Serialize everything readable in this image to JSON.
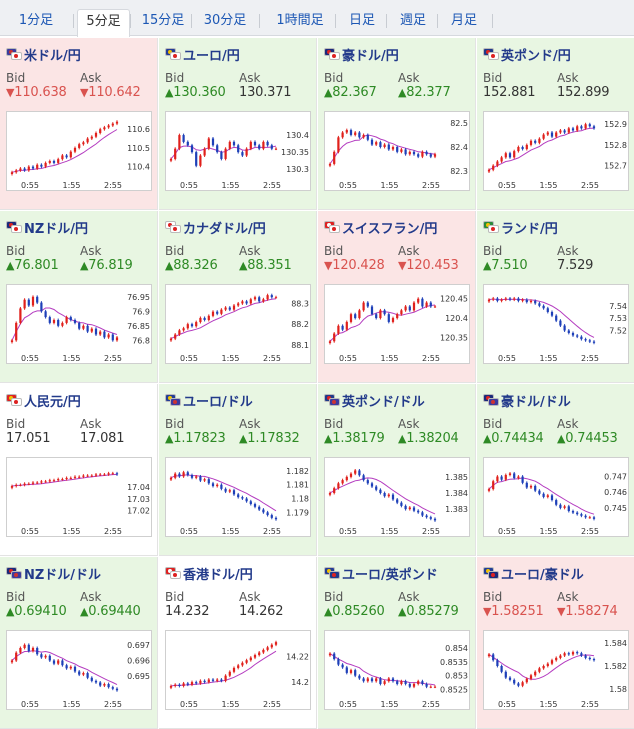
{
  "tabs": [
    {
      "label": "1分足",
      "active": false
    },
    {
      "label": "5分足",
      "active": true
    },
    {
      "label": "15分足",
      "active": false
    },
    {
      "label": "30分足",
      "active": false
    },
    {
      "label": "1時間足",
      "active": false
    },
    {
      "label": "日足",
      "active": false
    },
    {
      "label": "週足",
      "active": false
    },
    {
      "label": "月足",
      "active": false
    }
  ],
  "labels": {
    "bid": "Bid",
    "ask": "Ask"
  },
  "colors": {
    "up": "#2e8a25",
    "down": "#d9534f",
    "candle_up": "#e0201b",
    "candle_down": "#1d3fb8",
    "ma": "#b43cc0",
    "ma_fast": "#3aa7c9"
  },
  "pairs": [
    {
      "name": "米ドル/円",
      "flag": "us-jp-flag-icon",
      "trend": "down",
      "bid": "110.638",
      "ask": "110.642",
      "bid_dir": "down",
      "ask_dir": "down",
      "chart_data": {
        "type": "candlestick",
        "xticks": [
          "0:55",
          "1:55",
          "2:55"
        ],
        "yticks": [
          "110.6",
          "110.5",
          "110.4"
        ],
        "ylim": [
          110.35,
          110.66
        ],
        "close": [
          110.37,
          110.38,
          110.39,
          110.38,
          110.4,
          110.39,
          110.41,
          110.4,
          110.42,
          110.43,
          110.42,
          110.44,
          110.46,
          110.45,
          110.48,
          110.5,
          110.52,
          110.53,
          110.55,
          110.56,
          110.58,
          110.6,
          110.61,
          110.62,
          110.63,
          110.64
        ]
      }
    },
    {
      "name": "ユーロ/円",
      "flag": "eu-jp-flag-icon",
      "trend": "up",
      "bid": "130.360",
      "ask": "130.371",
      "bid_dir": "up",
      "ask_dir": "flat",
      "chart_data": {
        "type": "candlestick",
        "xticks": [
          "0:55",
          "1:55",
          "2:55"
        ],
        "yticks": [
          "130.4",
          "130.35",
          "130.3"
        ],
        "ylim": [
          130.28,
          130.45
        ],
        "close": [
          130.33,
          130.36,
          130.4,
          130.38,
          130.37,
          130.35,
          130.31,
          130.34,
          130.36,
          130.39,
          130.37,
          130.35,
          130.33,
          130.36,
          130.38,
          130.37,
          130.35,
          130.34,
          130.36,
          130.38,
          130.37,
          130.36,
          130.38,
          130.37,
          130.36,
          130.36
        ]
      }
    },
    {
      "name": "豪ドル/円",
      "flag": "au-jp-flag-icon",
      "trend": "up",
      "bid": "82.367",
      "ask": "82.377",
      "bid_dir": "up",
      "ask_dir": "up",
      "chart_data": {
        "type": "candlestick",
        "xticks": [
          "0:55",
          "1:55",
          "2:55"
        ],
        "yticks": [
          "82.5",
          "82.4",
          "82.3"
        ],
        "ylim": [
          82.28,
          82.52
        ],
        "close": [
          82.33,
          82.38,
          82.44,
          82.46,
          82.47,
          82.45,
          82.46,
          82.44,
          82.45,
          82.43,
          82.41,
          82.42,
          82.4,
          82.41,
          82.39,
          82.4,
          82.38,
          82.39,
          82.37,
          82.38,
          82.37,
          82.36,
          82.38,
          82.37,
          82.36,
          82.37
        ]
      }
    },
    {
      "name": "英ポンド/円",
      "flag": "gb-jp-flag-icon",
      "trend": "up",
      "bid": "152.881",
      "ask": "152.899",
      "bid_dir": "flat",
      "ask_dir": "flat",
      "chart_data": {
        "type": "candlestick",
        "xticks": [
          "0:55",
          "1:55",
          "2:55"
        ],
        "yticks": [
          "152.9",
          "152.8",
          "152.7"
        ],
        "ylim": [
          152.65,
          152.93
        ],
        "close": [
          152.68,
          152.7,
          152.72,
          152.74,
          152.76,
          152.74,
          152.77,
          152.79,
          152.78,
          152.8,
          152.82,
          152.81,
          152.83,
          152.85,
          152.86,
          152.84,
          152.86,
          152.87,
          152.86,
          152.88,
          152.87,
          152.89,
          152.88,
          152.9,
          152.89,
          152.88
        ]
      }
    },
    {
      "name": "NZドル/円",
      "flag": "nz-jp-flag-icon",
      "trend": "up",
      "bid": "76.801",
      "ask": "76.819",
      "bid_dir": "up",
      "ask_dir": "up",
      "chart_data": {
        "type": "candlestick",
        "xticks": [
          "0:55",
          "1:55",
          "2:55"
        ],
        "yticks": [
          "76.95",
          "76.9",
          "76.85",
          "76.8"
        ],
        "ylim": [
          76.77,
          76.97
        ],
        "close": [
          76.8,
          76.86,
          76.91,
          76.94,
          76.92,
          76.95,
          76.93,
          76.9,
          76.88,
          76.86,
          76.87,
          76.85,
          76.86,
          76.88,
          76.87,
          76.86,
          76.84,
          76.85,
          76.83,
          76.84,
          76.82,
          76.83,
          76.81,
          76.82,
          76.8,
          76.81
        ]
      }
    },
    {
      "name": "カナダドル/円",
      "flag": "ca-jp-flag-icon",
      "trend": "up",
      "bid": "88.326",
      "ask": "88.351",
      "bid_dir": "up",
      "ask_dir": "up",
      "chart_data": {
        "type": "candlestick",
        "xticks": [
          "0:55",
          "1:55",
          "2:55"
        ],
        "yticks": [
          "88.3",
          "88.2",
          "88.1"
        ],
        "ylim": [
          88.08,
          88.36
        ],
        "close": [
          88.13,
          88.15,
          88.17,
          88.18,
          88.2,
          88.19,
          88.21,
          88.23,
          88.22,
          88.24,
          88.26,
          88.25,
          88.27,
          88.28,
          88.27,
          88.29,
          88.3,
          88.31,
          88.3,
          88.32,
          88.33,
          88.31,
          88.32,
          88.34,
          88.33,
          88.33
        ]
      }
    },
    {
      "name": "スイスフラン/円",
      "flag": "ch-jp-flag-icon",
      "trend": "down",
      "bid": "120.428",
      "ask": "120.453",
      "bid_dir": "down",
      "ask_dir": "down",
      "chart_data": {
        "type": "candlestick",
        "xticks": [
          "0:55",
          "1:55",
          "2:55"
        ],
        "yticks": [
          "120.45",
          "120.4",
          "120.35"
        ],
        "ylim": [
          120.32,
          120.47
        ],
        "close": [
          120.34,
          120.36,
          120.38,
          120.37,
          120.39,
          120.41,
          120.4,
          120.42,
          120.44,
          120.43,
          120.41,
          120.4,
          120.42,
          120.41,
          120.39,
          120.4,
          120.41,
          120.42,
          120.43,
          120.42,
          120.44,
          120.45,
          120.43,
          120.44,
          120.43,
          120.43
        ]
      }
    },
    {
      "name": "ランド/円",
      "flag": "za-jp-flag-icon",
      "trend": "up",
      "bid": "7.510",
      "ask": "7.529",
      "bid_dir": "up",
      "ask_dir": "flat",
      "chart_data": {
        "type": "candlestick",
        "xticks": [
          "0:55",
          "1:55",
          "2:55"
        ],
        "yticks": [
          "7.54",
          "7.53",
          "7.52"
        ],
        "ylim": [
          7.505,
          7.552
        ],
        "close": [
          7.545,
          7.546,
          7.544,
          7.545,
          7.546,
          7.545,
          7.546,
          7.544,
          7.545,
          7.543,
          7.544,
          7.542,
          7.54,
          7.538,
          7.535,
          7.532,
          7.528,
          7.524,
          7.52,
          7.518,
          7.516,
          7.515,
          7.513,
          7.512,
          7.511,
          7.51
        ]
      }
    },
    {
      "name": "人民元/円",
      "flag": "cn-jp-flag-icon",
      "trend": "neutral",
      "bid": "17.051",
      "ask": "17.081",
      "bid_dir": "flat",
      "ask_dir": "flat",
      "chart_data": {
        "type": "candlestick",
        "xticks": [
          "0:55",
          "1:55",
          "2:55"
        ],
        "yticks": [
          "17.04",
          "17.03",
          "17.02"
        ],
        "ylim": [
          17.01,
          17.06
        ],
        "close": [
          17.041,
          17.042,
          17.042,
          17.043,
          17.043,
          17.044,
          17.044,
          17.045,
          17.045,
          17.046,
          17.046,
          17.047,
          17.047,
          17.048,
          17.048,
          17.049,
          17.049,
          17.05,
          17.05,
          17.05,
          17.051,
          17.051,
          17.051,
          17.052,
          17.052,
          17.051
        ]
      }
    },
    {
      "name": "ユーロ/ドル",
      "flag": "eu-us-flag-icon",
      "trend": "up",
      "bid": "1.17823",
      "ask": "1.17832",
      "bid_dir": "up",
      "ask_dir": "up",
      "chart_data": {
        "type": "candlestick",
        "xticks": [
          "0:55",
          "1:55",
          "2:55"
        ],
        "yticks": [
          "1.182",
          "1.181",
          "1.18",
          "1.179"
        ],
        "ylim": [
          1.1783,
          1.1825
        ],
        "close": [
          1.1815,
          1.1818,
          1.1816,
          1.1819,
          1.1817,
          1.1815,
          1.1816,
          1.1813,
          1.1814,
          1.1811,
          1.1809,
          1.181,
          1.1807,
          1.1805,
          1.1806,
          1.1803,
          1.1801,
          1.18,
          1.1798,
          1.1796,
          1.1794,
          1.1792,
          1.179,
          1.1788,
          1.1786,
          1.1785
        ]
      }
    },
    {
      "name": "英ポンド/ドル",
      "flag": "gb-us-flag-icon",
      "trend": "up",
      "bid": "1.38179",
      "ask": "1.38204",
      "bid_dir": "up",
      "ask_dir": "up",
      "chart_data": {
        "type": "candlestick",
        "xticks": [
          "0:55",
          "1:55",
          "2:55"
        ],
        "yticks": [
          "1.385",
          "1.384",
          "1.383"
        ],
        "ylim": [
          1.3822,
          1.3858
        ],
        "close": [
          1.384,
          1.3843,
          1.3846,
          1.3848,
          1.385,
          1.3852,
          1.3854,
          1.3851,
          1.3848,
          1.3846,
          1.3844,
          1.3842,
          1.384,
          1.3838,
          1.3839,
          1.3836,
          1.3834,
          1.3832,
          1.383,
          1.3831,
          1.3829,
          1.3828,
          1.3826,
          1.3825,
          1.3824,
          1.3823
        ]
      }
    },
    {
      "name": "豪ドル/ドル",
      "flag": "au-us-flag-icon",
      "trend": "up",
      "bid": "0.74434",
      "ask": "0.74453",
      "bid_dir": "up",
      "ask_dir": "up",
      "chart_data": {
        "type": "candlestick",
        "xticks": [
          "0:55",
          "1:55",
          "2:55"
        ],
        "yticks": [
          "0.747",
          "0.746",
          "0.745"
        ],
        "ylim": [
          0.7441,
          0.7478
        ],
        "close": [
          0.7462,
          0.7467,
          0.747,
          0.7468,
          0.7471,
          0.7472,
          0.7469,
          0.747,
          0.7466,
          0.7463,
          0.7464,
          0.7461,
          0.7459,
          0.7457,
          0.7458,
          0.7455,
          0.7452,
          0.745,
          0.7451,
          0.7448,
          0.7447,
          0.7446,
          0.7445,
          0.7444,
          0.7444,
          0.7443
        ]
      }
    },
    {
      "name": "NZドル/ドル",
      "flag": "nz-us-flag-icon",
      "trend": "up",
      "bid": "0.69410",
      "ask": "0.69440",
      "bid_dir": "up",
      "ask_dir": "up",
      "chart_data": {
        "type": "candlestick",
        "xticks": [
          "0:55",
          "1:55",
          "2:55"
        ],
        "yticks": [
          "0.697",
          "0.696",
          "0.695"
        ],
        "ylim": [
          0.6938,
          0.6975
        ],
        "close": [
          0.696,
          0.6965,
          0.6968,
          0.697,
          0.6966,
          0.6968,
          0.6964,
          0.6962,
          0.6963,
          0.696,
          0.6958,
          0.696,
          0.6957,
          0.6955,
          0.6956,
          0.6953,
          0.6951,
          0.6952,
          0.6949,
          0.6947,
          0.6946,
          0.6944,
          0.6945,
          0.6943,
          0.6942,
          0.6941
        ]
      }
    },
    {
      "name": "香港ドル/円",
      "flag": "hk-jp-flag-icon",
      "trend": "neutral",
      "bid": "14.232",
      "ask": "14.262",
      "bid_dir": "flat",
      "ask_dir": "flat",
      "chart_data": {
        "type": "candlestick",
        "xticks": [
          "0:55",
          "1:55",
          "2:55"
        ],
        "yticks": [
          "14.22",
          "14.2"
        ],
        "ylim": [
          14.19,
          14.235
        ],
        "close": [
          14.197,
          14.198,
          14.197,
          14.199,
          14.198,
          14.2,
          14.199,
          14.201,
          14.2,
          14.202,
          14.201,
          14.202,
          14.201,
          14.205,
          14.208,
          14.211,
          14.213,
          14.215,
          14.217,
          14.219,
          14.221,
          14.223,
          14.225,
          14.227,
          14.229,
          14.231
        ]
      }
    },
    {
      "name": "ユーロ/英ポンド",
      "flag": "eu-gb-flag-icon",
      "trend": "up",
      "bid": "0.85260",
      "ask": "0.85279",
      "bid_dir": "up",
      "ask_dir": "up",
      "chart_data": {
        "type": "candlestick",
        "xticks": [
          "0:55",
          "1:55",
          "2:55"
        ],
        "yticks": [
          "0.854",
          "0.8535",
          "0.853",
          "0.8525"
        ],
        "ylim": [
          0.8523,
          0.8544
        ],
        "close": [
          0.8538,
          0.8536,
          0.8534,
          0.8533,
          0.8531,
          0.8532,
          0.853,
          0.8529,
          0.8528,
          0.8529,
          0.8528,
          0.8529,
          0.8527,
          0.8528,
          0.8529,
          0.8528,
          0.8527,
          0.8528,
          0.8527,
          0.8526,
          0.8527,
          0.8528,
          0.8527,
          0.8526,
          0.8526,
          0.8526
        ]
      }
    },
    {
      "name": "ユーロ/豪ドル",
      "flag": "eu-au-flag-icon",
      "trend": "down",
      "bid": "1.58251",
      "ask": "1.58274",
      "bid_dir": "down",
      "ask_dir": "down",
      "chart_data": {
        "type": "candlestick",
        "xticks": [
          "0:55",
          "1:55",
          "2:55"
        ],
        "yticks": [
          "1.584",
          "1.582",
          "1.58"
        ],
        "ylim": [
          1.5795,
          1.5845
        ],
        "close": [
          1.583,
          1.5825,
          1.582,
          1.5815,
          1.581,
          1.5808,
          1.5805,
          1.5803,
          1.5806,
          1.5809,
          1.5812,
          1.5815,
          1.5818,
          1.582,
          1.5822,
          1.5825,
          1.5827,
          1.5829,
          1.5831,
          1.583,
          1.5832,
          1.5831,
          1.5829,
          1.5827,
          1.5826,
          1.5825
        ]
      }
    }
  ]
}
